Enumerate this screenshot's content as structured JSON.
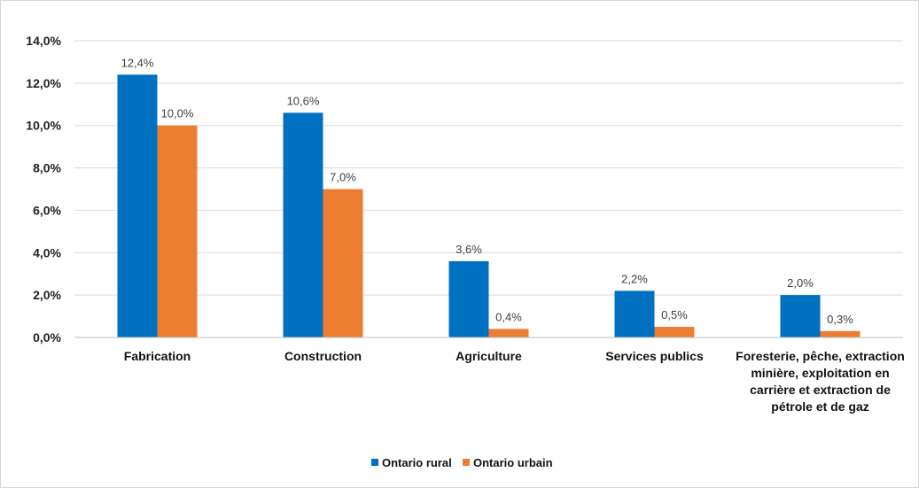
{
  "chart_data": {
    "type": "bar",
    "title": "",
    "xlabel": "",
    "ylabel": "",
    "ylim": [
      0,
      14
    ],
    "ytick_step": 2,
    "ytick_labels": [
      "0,0%",
      "2,0%",
      "4,0%",
      "6,0%",
      "8,0%",
      "10,0%",
      "12,0%",
      "14,0%"
    ],
    "grid": true,
    "legend_position": "bottom-center",
    "categories": [
      [
        "Fabrication"
      ],
      [
        "Construction"
      ],
      [
        "Agriculture"
      ],
      [
        "Services publics"
      ],
      [
        "Foresterie, pêche, extraction",
        "minière, exploitation en",
        "carrière et extraction de",
        "pétrole et de gaz"
      ]
    ],
    "series": [
      {
        "name": "Ontario rural",
        "color": "#0070C0",
        "values": [
          12.4,
          10.6,
          3.6,
          2.2,
          2.0
        ],
        "labels": [
          "12,4%",
          "10,6%",
          "3,6%",
          "2,2%",
          "2,0%"
        ]
      },
      {
        "name": "Ontario urbain",
        "color": "#ED7D31",
        "values": [
          10.0,
          7.0,
          0.4,
          0.5,
          0.3
        ],
        "labels": [
          "10,0%",
          "7,0%",
          "0,4%",
          "0,5%",
          "0,3%"
        ]
      }
    ]
  }
}
